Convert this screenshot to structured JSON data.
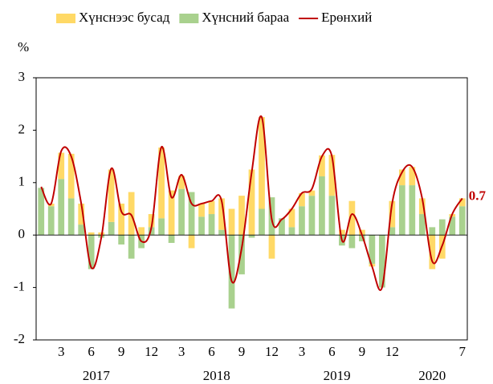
{
  "chart_data": {
    "type": "stacked_bar_line",
    "y_label": "%",
    "categories": [
      null,
      null,
      "3",
      null,
      null,
      "6",
      null,
      null,
      "9",
      null,
      null,
      "12",
      null,
      null,
      "3",
      null,
      null,
      "6",
      null,
      null,
      "9",
      null,
      null,
      "12",
      null,
      null,
      "3",
      null,
      null,
      "6",
      null,
      null,
      "9",
      null,
      null,
      "12",
      null,
      null,
      null,
      null,
      null,
      null,
      "7"
    ],
    "years": [
      "2017",
      "2018",
      "2019",
      "2020"
    ],
    "series": [
      {
        "name": "Хүнснээс бусад",
        "kind": "bar",
        "color": "#ffd966",
        "values": [
          0.0,
          0.05,
          0.5,
          0.85,
          0.4,
          0.05,
          0.05,
          1.0,
          0.6,
          0.82,
          0.15,
          0.25,
          1.35,
          0.85,
          0.25,
          -0.25,
          0.25,
          0.25,
          0.6,
          0.5,
          0.75,
          1.25,
          1.75,
          -0.45,
          0,
          0.35,
          0.25,
          0.1,
          0.4,
          0.78,
          0.1,
          0.65,
          0.1,
          -0.05,
          0,
          0.5,
          0.3,
          0.35,
          0.3,
          -0.65,
          -0.45,
          0.05,
          0.15
        ]
      },
      {
        "name": "Хүнсний бараа",
        "kind": "bar",
        "color": "#a9d18e",
        "values": [
          0.9,
          0.55,
          1.07,
          0.7,
          0.2,
          -0.65,
          -0.05,
          0.25,
          -0.18,
          -0.45,
          -0.25,
          0.15,
          0.32,
          -0.15,
          0.88,
          0.82,
          0.35,
          0.4,
          0.1,
          -1.4,
          -0.75,
          -0.05,
          0.5,
          0.72,
          0.32,
          0.15,
          0.55,
          0.75,
          1.12,
          0.75,
          -0.2,
          -0.25,
          -0.12,
          -0.55,
          -1.0,
          0.15,
          0.95,
          0.95,
          0.4,
          0.15,
          0.3,
          0.35,
          0.55
        ]
      },
      {
        "name": "Ерөнхий",
        "kind": "line",
        "color": "#c00000",
        "values": [
          0.92,
          0.6,
          1.6,
          1.5,
          0.6,
          -0.62,
          -0.05,
          1.27,
          0.45,
          0.38,
          -0.12,
          0.15,
          1.68,
          0.72,
          1.15,
          0.6,
          0.6,
          0.65,
          0.65,
          -0.88,
          -0.25,
          1.2,
          2.25,
          0.3,
          0.3,
          0.5,
          0.8,
          0.88,
          1.5,
          1.5,
          -0.1,
          0.4,
          0,
          -0.6,
          -1.0,
          0.6,
          1.2,
          1.3,
          0.7,
          -0.5,
          -0.2,
          0.4,
          0.7
        ]
      }
    ],
    "stack_order": [
      1,
      0
    ],
    "end_label_series": 2,
    "ylim": [
      -2,
      3
    ],
    "yticks": [
      -2,
      -1,
      0,
      1,
      2,
      3
    ],
    "grid": false
  }
}
